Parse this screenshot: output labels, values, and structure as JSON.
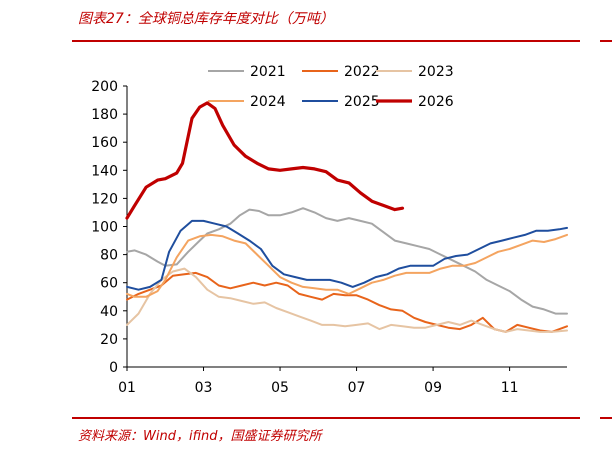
{
  "header": {
    "title": "图表27：全球铜总库存年度对比（万吨）"
  },
  "footer": {
    "source": "资料来源：Wind，ifind，国盛证券研究所"
  },
  "chart_data": {
    "type": "line",
    "title": "图表27：全球铜总库存年度对比（万吨）",
    "xlabel": "",
    "ylabel": "",
    "ylim": [
      0,
      200
    ],
    "yticks": [
      0,
      20,
      40,
      60,
      80,
      100,
      120,
      140,
      160,
      180,
      200
    ],
    "xlim": [
      1,
      12.5
    ],
    "xticks": [
      {
        "v": 1,
        "label": "01"
      },
      {
        "v": 3,
        "label": "03"
      },
      {
        "v": 5,
        "label": "05"
      },
      {
        "v": 7,
        "label": "07"
      },
      {
        "v": 9,
        "label": "09"
      },
      {
        "v": 11,
        "label": "11"
      }
    ],
    "grid": false,
    "legend": "top",
    "series": [
      {
        "name": "2021",
        "color": "#a6a6a6",
        "x": [
          1.0,
          1.2,
          1.5,
          1.8,
          2.0,
          2.3,
          2.6,
          2.9,
          3.1,
          3.4,
          3.7,
          3.95,
          4.2,
          4.45,
          4.7,
          5.0,
          5.3,
          5.6,
          5.9,
          6.2,
          6.5,
          6.8,
          7.1,
          7.4,
          7.7,
          8.0,
          8.3,
          8.6,
          8.9,
          9.2,
          9.5,
          9.8,
          10.1,
          10.4,
          10.7,
          11.0,
          11.3,
          11.6,
          11.9,
          12.2,
          12.5
        ],
        "y": [
          82,
          83,
          80,
          75,
          72,
          73,
          82,
          90,
          95,
          98,
          102,
          108,
          112,
          111,
          108,
          108,
          110,
          113,
          110,
          106,
          104,
          106,
          104,
          102,
          96,
          90,
          88,
          86,
          84,
          80,
          76,
          72,
          68,
          62,
          58,
          54,
          48,
          43,
          41,
          38,
          38
        ]
      },
      {
        "name": "2022",
        "color": "#e8641b",
        "x": [
          1.0,
          1.3,
          1.6,
          1.9,
          2.2,
          2.5,
          2.8,
          3.1,
          3.4,
          3.7,
          4.0,
          4.3,
          4.6,
          4.9,
          5.2,
          5.5,
          5.8,
          6.1,
          6.4,
          6.7,
          7.0,
          7.3,
          7.6,
          7.9,
          8.2,
          8.5,
          8.8,
          9.1,
          9.4,
          9.7,
          10.0,
          10.3,
          10.6,
          10.9,
          11.2,
          11.5,
          11.8,
          12.1,
          12.5
        ],
        "y": [
          48,
          52,
          55,
          58,
          65,
          66,
          67,
          64,
          58,
          56,
          58,
          60,
          58,
          60,
          58,
          52,
          50,
          48,
          52,
          51,
          51,
          48,
          44,
          41,
          40,
          35,
          32,
          30,
          28,
          27,
          30,
          35,
          27,
          25,
          30,
          28,
          26,
          25,
          29
        ]
      },
      {
        "name": "2023",
        "color": "#e6c4a3",
        "x": [
          1.0,
          1.3,
          1.6,
          1.9,
          2.2,
          2.5,
          2.8,
          3.1,
          3.4,
          3.7,
          4.0,
          4.3,
          4.6,
          4.9,
          5.2,
          5.5,
          5.8,
          6.1,
          6.4,
          6.7,
          7.0,
          7.3,
          7.6,
          7.9,
          8.2,
          8.5,
          8.8,
          9.1,
          9.4,
          9.7,
          10.0,
          10.3,
          10.6,
          10.9,
          11.2,
          11.5,
          11.8,
          12.1,
          12.5
        ],
        "y": [
          30,
          38,
          52,
          62,
          68,
          70,
          64,
          55,
          50,
          49,
          47,
          45,
          46,
          42,
          39,
          36,
          33,
          30,
          30,
          29,
          30,
          31,
          27,
          30,
          29,
          28,
          28,
          30,
          32,
          30,
          33,
          30,
          27,
          25,
          27,
          26,
          25,
          25,
          26
        ]
      },
      {
        "name": "2024",
        "color": "#f4a460",
        "x": [
          1.0,
          1.2,
          1.5,
          1.8,
          2.0,
          2.3,
          2.6,
          2.9,
          3.2,
          3.5,
          3.8,
          4.1,
          4.4,
          4.7,
          5.0,
          5.3,
          5.6,
          5.9,
          6.2,
          6.5,
          6.8,
          7.1,
          7.4,
          7.7,
          8.0,
          8.3,
          8.6,
          8.9,
          9.2,
          9.5,
          9.8,
          10.1,
          10.4,
          10.7,
          11.0,
          11.3,
          11.6,
          11.9,
          12.2,
          12.5
        ],
        "y": [
          52,
          50,
          50,
          54,
          62,
          78,
          90,
          93,
          94,
          93,
          90,
          88,
          80,
          72,
          64,
          60,
          57,
          56,
          55,
          55,
          52,
          56,
          60,
          62,
          65,
          67,
          67,
          67,
          70,
          72,
          72,
          74,
          78,
          82,
          84,
          87,
          90,
          89,
          91,
          94
        ]
      },
      {
        "name": "2025",
        "color": "#1f4e9e",
        "x": [
          1.0,
          1.3,
          1.6,
          1.9,
          2.1,
          2.4,
          2.7,
          3.0,
          3.3,
          3.6,
          3.9,
          4.2,
          4.5,
          4.8,
          5.1,
          5.4,
          5.7,
          6.0,
          6.3,
          6.6,
          6.9,
          7.2,
          7.5,
          7.8,
          8.1,
          8.4,
          8.7,
          9.0,
          9.3,
          9.6,
          9.9,
          10.2,
          10.5,
          10.8,
          11.1,
          11.4,
          11.7,
          12.0,
          12.3,
          12.5
        ],
        "y": [
          57,
          55,
          57,
          62,
          82,
          97,
          104,
          104,
          102,
          100,
          95,
          90,
          84,
          72,
          66,
          64,
          62,
          62,
          62,
          60,
          57,
          60,
          64,
          66,
          70,
          72,
          72,
          72,
          77,
          79,
          80,
          84,
          88,
          90,
          92,
          94,
          97,
          97,
          98,
          99
        ]
      },
      {
        "name": "2026",
        "color": "#c00000",
        "width": 3.2,
        "x": [
          1.0,
          1.2,
          1.5,
          1.8,
          2.0,
          2.3,
          2.45,
          2.7,
          2.9,
          3.1,
          3.3,
          3.5,
          3.8,
          4.1,
          4.4,
          4.7,
          5.0,
          5.3,
          5.6,
          5.9,
          6.2,
          6.5,
          6.8,
          7.1,
          7.4,
          7.7,
          8.0,
          8.2
        ],
        "y": [
          106,
          115,
          128,
          133,
          134,
          138,
          145,
          177,
          185,
          188,
          184,
          172,
          158,
          150,
          145,
          141,
          140,
          141,
          142,
          141,
          139,
          133,
          131,
          124,
          118,
          115,
          112,
          113
        ]
      }
    ]
  }
}
